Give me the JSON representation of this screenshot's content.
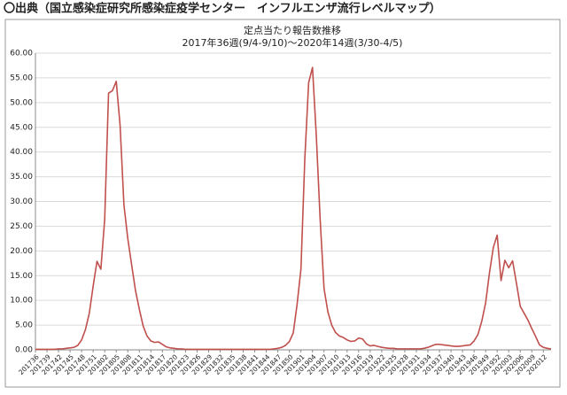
{
  "header": "〇出典（国立感染症研究所感染症疫学センター　インフルエンザ流行レベルマップ）",
  "chart_data": {
    "type": "line",
    "title": "定点当たり報告数推移",
    "subtitle": "2017年36週(9/4-9/10)～2020年14週(3/30-4/5)",
    "categories": [
      "201736",
      null,
      null,
      "201739",
      null,
      null,
      "201742",
      null,
      null,
      "201745",
      null,
      null,
      "201748",
      null,
      null,
      "201751",
      null,
      null,
      "201802",
      null,
      null,
      "201805",
      null,
      null,
      "201808",
      null,
      null,
      "201811",
      null,
      null,
      "201814",
      null,
      null,
      "201817",
      null,
      null,
      "201820",
      null,
      null,
      "201823",
      null,
      null,
      "201826",
      null,
      null,
      "201829",
      null,
      null,
      "201832",
      null,
      null,
      "201835",
      null,
      null,
      "201838",
      null,
      null,
      "201841",
      null,
      null,
      "201844",
      null,
      null,
      "201847",
      null,
      null,
      "201850",
      null,
      null,
      "201901",
      null,
      null,
      "201904",
      null,
      null,
      "201907",
      null,
      null,
      "201910",
      null,
      null,
      "201913",
      null,
      null,
      "201916",
      null,
      null,
      "201919",
      null,
      null,
      "201922",
      null,
      null,
      "201925",
      null,
      null,
      "201928",
      null,
      null,
      "201931",
      null,
      null,
      "201934",
      null,
      null,
      "201937",
      null,
      null,
      "201940",
      null,
      null,
      "201943",
      null,
      null,
      "201946",
      null,
      null,
      "201949",
      null,
      null,
      "201952",
      null,
      null,
      "202003",
      null,
      null,
      "202006",
      null,
      null,
      "202009",
      null,
      null,
      "202012",
      null,
      null
    ],
    "values": [
      0.1,
      0.1,
      0.1,
      0.1,
      0.1,
      0.1,
      0.2,
      0.2,
      0.3,
      0.4,
      0.5,
      0.9,
      2.0,
      4.1,
      7.4,
      12.9,
      17.9,
      16.3,
      26.4,
      51.9,
      52.4,
      54.3,
      45.4,
      29.3,
      22.5,
      17.2,
      12.0,
      8.2,
      4.8,
      2.8,
      1.8,
      1.5,
      1.6,
      1.1,
      0.6,
      0.4,
      0.3,
      0.2,
      0.2,
      0.1,
      0.1,
      0.1,
      0.1,
      0.1,
      0.1,
      0.1,
      0.1,
      0.1,
      0.1,
      0.1,
      0.1,
      0.1,
      0.1,
      0.1,
      0.1,
      0.1,
      0.1,
      0.1,
      0.1,
      0.1,
      0.1,
      0.1,
      0.2,
      0.3,
      0.5,
      0.9,
      1.7,
      3.4,
      9.2,
      16.3,
      38.5,
      54.0,
      57.1,
      43.2,
      26.3,
      12.4,
      7.7,
      5.0,
      3.5,
      2.8,
      2.5,
      2.0,
      1.7,
      1.8,
      2.4,
      2.2,
      1.2,
      0.8,
      0.9,
      0.7,
      0.5,
      0.4,
      0.3,
      0.3,
      0.2,
      0.2,
      0.2,
      0.2,
      0.2,
      0.2,
      0.2,
      0.3,
      0.5,
      0.8,
      1.1,
      1.1,
      1.0,
      0.9,
      0.8,
      0.7,
      0.7,
      0.8,
      0.9,
      1.0,
      1.8,
      3.1,
      5.8,
      9.5,
      15.6,
      20.7,
      23.2,
      14.0,
      18.1,
      16.6,
      18.0,
      13.5,
      8.8,
      7.4,
      6.0,
      4.3,
      2.7,
      1.0,
      0.5,
      0.3,
      0.2
    ],
    "color": "#c0504d",
    "ylim": [
      0,
      60
    ],
    "yticks": [
      {
        "value": 0,
        "label": "0.00"
      },
      {
        "value": 5,
        "label": "5.00"
      },
      {
        "value": 10,
        "label": "10.00"
      },
      {
        "value": 15,
        "label": "15.00"
      },
      {
        "value": 20,
        "label": "20.00"
      },
      {
        "value": 25,
        "label": "25.00"
      },
      {
        "value": 30,
        "label": "30.00"
      },
      {
        "value": 35,
        "label": "35.00"
      },
      {
        "value": 40,
        "label": "40.00"
      },
      {
        "value": 45,
        "label": "45.00"
      },
      {
        "value": 50,
        "label": "50.00"
      },
      {
        "value": 55,
        "label": "55.00"
      },
      {
        "value": 60,
        "label": "60.00"
      }
    ],
    "grid": true
  }
}
